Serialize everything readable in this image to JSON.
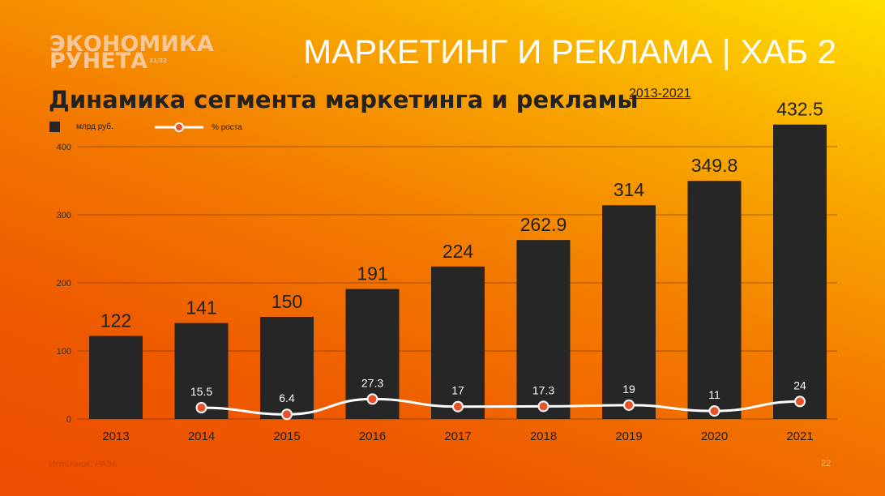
{
  "header": {
    "logo_line1": "ЭКОНОМИКА",
    "logo_line2": "РУНЕТА",
    "logo_sup": "21/22",
    "hub": "МАРКЕТИНГ И РЕКЛАМА | ХАБ 2"
  },
  "footer": {
    "source": "Источник: РАЭК",
    "page": "22"
  },
  "colors": {
    "bar": "#262626",
    "line": "#ffffff",
    "point": "#e8522a"
  },
  "chart_data": {
    "type": "bar",
    "title": "Динамика сегмента маркетинга и рекламы",
    "subtitle": "2013-2021",
    "categories": [
      "2013",
      "2014",
      "2015",
      "2016",
      "2017",
      "2018",
      "2019",
      "2020",
      "2021"
    ],
    "series": [
      {
        "name": "млрд руб.",
        "type": "bar",
        "values": [
          122,
          141,
          150,
          191,
          224,
          262.9,
          314,
          349.8,
          432.5
        ],
        "labels": [
          "122",
          "141",
          "150",
          "191",
          "224",
          "262.9",
          "314",
          "349.8",
          "432.5"
        ]
      },
      {
        "name": "% роста",
        "type": "line",
        "values": [
          null,
          15.5,
          6.4,
          27.3,
          17,
          17.3,
          19,
          11,
          24
        ],
        "labels": [
          "",
          "15.5",
          "6.4",
          "27.3",
          "17",
          "17.3",
          "19",
          "11",
          "24"
        ]
      }
    ],
    "yticks": [
      "0",
      "100",
      "200",
      "300",
      "400"
    ],
    "ylim": [
      0,
      450
    ],
    "grid": true,
    "legend": "top-left"
  }
}
